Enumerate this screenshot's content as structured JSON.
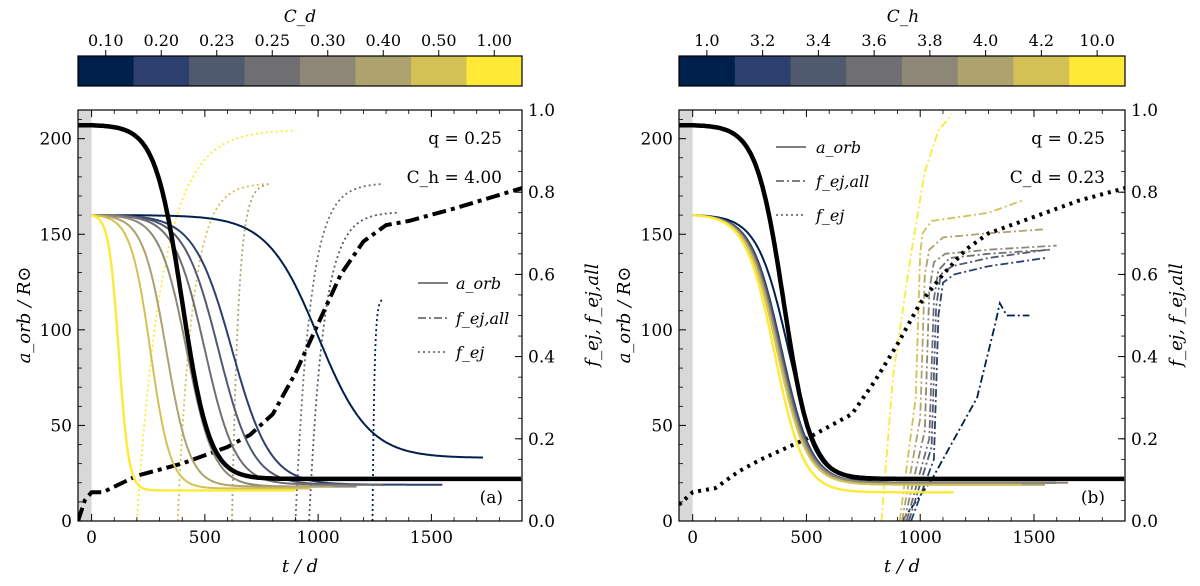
{
  "colors": {
    "palette8": [
      "#00204c",
      "#2c3f6f",
      "#505a6f",
      "#6f6f73",
      "#8c8776",
      "#aea26e",
      "#d4c155",
      "#fde936"
    ],
    "black": "#000000",
    "shade": "#d8d8d8"
  },
  "chart_data": [
    {
      "id": "a",
      "type": "line",
      "panel_label": "(a)",
      "xlabel": "t / d",
      "ylabel_left": "a_orb / R⊙",
      "ylabel_right": "f_ej, f_ej,all",
      "xlim": [
        -60,
        1900
      ],
      "ylim_left": [
        0,
        215
      ],
      "ylim_right": [
        0.0,
        1.0
      ],
      "xticks": [
        0,
        500,
        1000,
        1500
      ],
      "yticks_left": [
        0,
        50,
        100,
        150,
        200
      ],
      "yticks_right": [
        "0.0",
        "0.2",
        "0.4",
        "0.6",
        "0.8",
        "1.0"
      ],
      "colorbar": {
        "label": "C_d",
        "ticks": [
          "0.10",
          "0.20",
          "0.23",
          "0.25",
          "0.30",
          "0.40",
          "0.50",
          "1.00"
        ]
      },
      "annotations": [
        "q = 0.25",
        "C_h = 4.00"
      ],
      "legend": {
        "position": "center-right",
        "entries": [
          "a_orb",
          "f_ej,all",
          "f_ej"
        ]
      },
      "aorb_series": [
        {
          "name": "0.10",
          "t_end": 1730,
          "a0": 160,
          "a_end": 33,
          "a_mid": 105,
          "t_mid": 1000,
          "slope": 280
        },
        {
          "name": "0.20",
          "t_end": 1550,
          "a0": 160,
          "a_end": 19,
          "a_mid": 75,
          "t_mid": 620,
          "slope": 210
        },
        {
          "name": "0.23",
          "t_end": 1300,
          "a0": 160,
          "a_end": 19,
          "a_mid": 80,
          "t_mid": 560,
          "slope": 190
        },
        {
          "name": "0.25",
          "t_end": 1280,
          "a0": 160,
          "a_end": 19,
          "a_mid": 82,
          "t_mid": 500,
          "slope": 170
        },
        {
          "name": "0.30",
          "t_end": 1170,
          "a0": 160,
          "a_end": 18,
          "a_mid": 85,
          "t_mid": 420,
          "slope": 150
        },
        {
          "name": "0.40",
          "t_end": 1070,
          "a0": 160,
          "a_end": 18,
          "a_mid": 88,
          "t_mid": 330,
          "slope": 130
        },
        {
          "name": "0.50",
          "t_end": 970,
          "a0": 160,
          "a_end": 17,
          "a_mid": 90,
          "t_mid": 260,
          "slope": 110
        },
        {
          "name": "1.00",
          "t_end": 900,
          "a0": 160,
          "a_end": 16,
          "a_mid": 95,
          "t_mid": 120,
          "slope": 55
        }
      ],
      "fej_series": [
        {
          "name": "0.10",
          "t_start": 1240,
          "t_end": 1290,
          "f_end": 0.54
        },
        {
          "name": "0.23",
          "t_start": 960,
          "t_end": 1350,
          "f_end": 0.75
        },
        {
          "name": "0.25",
          "t_start": 900,
          "t_end": 1290,
          "f_end": 0.82
        },
        {
          "name": "0.40",
          "t_start": 620,
          "t_end": 790,
          "f_end": 0.82
        },
        {
          "name": "0.50",
          "t_start": 380,
          "t_end": 780,
          "f_end": 0.82
        },
        {
          "name": "1.00",
          "t_start": 200,
          "t_end": 900,
          "f_end": 0.95
        }
      ],
      "reference_aorb": {
        "t_start": -60,
        "t_end": 1900,
        "a0": 207,
        "a_end": 22,
        "t_mid": 400,
        "slope": 150
      },
      "reference_fej_all": {
        "t": [
          -60,
          -30,
          0,
          50,
          200,
          400,
          600,
          700,
          800,
          900,
          1000,
          1100,
          1200,
          1300,
          1400,
          1600,
          1900
        ],
        "f": [
          0.0,
          0.05,
          0.07,
          0.07,
          0.11,
          0.14,
          0.18,
          0.21,
          0.26,
          0.36,
          0.48,
          0.6,
          0.68,
          0.72,
          0.73,
          0.76,
          0.81
        ]
      }
    },
    {
      "id": "b",
      "type": "line",
      "panel_label": "(b)",
      "xlabel": "t / d",
      "ylabel_left": "a_orb / R⊙",
      "ylabel_right": "f_ej, f_ej,all",
      "xlim": [
        -60,
        1900
      ],
      "ylim_left": [
        0,
        215
      ],
      "ylim_right": [
        0.0,
        1.0
      ],
      "xticks": [
        0,
        500,
        1000,
        1500
      ],
      "yticks_left": [
        0,
        50,
        100,
        150,
        200
      ],
      "yticks_right": [
        "0.0",
        "0.2",
        "0.4",
        "0.6",
        "0.8",
        "1.0"
      ],
      "colorbar": {
        "label": "C_h",
        "ticks": [
          "1.0",
          "3.2",
          "3.4",
          "3.6",
          "3.8",
          "4.0",
          "4.2",
          "10.0"
        ]
      },
      "annotations": [
        "q = 0.25",
        "C_d = 0.23"
      ],
      "legend": {
        "position": "top-center",
        "entries": [
          "a_orb",
          "f_ej,all",
          "f_ej"
        ]
      },
      "aorb_series": [
        {
          "name": "1.0",
          "t_end": 1600,
          "a0": 160,
          "a_end": 20,
          "a_mid": 88,
          "t_mid": 420,
          "slope": 170
        },
        {
          "name": "3.2",
          "t_end": 1600,
          "a0": 160,
          "a_end": 20,
          "a_mid": 88,
          "t_mid": 390,
          "slope": 165
        },
        {
          "name": "3.4",
          "t_end": 1600,
          "a0": 160,
          "a_end": 20,
          "a_mid": 88,
          "t_mid": 385,
          "slope": 165
        },
        {
          "name": "3.6",
          "t_end": 1600,
          "a0": 160,
          "a_end": 20,
          "a_mid": 88,
          "t_mid": 380,
          "slope": 165
        },
        {
          "name": "3.8",
          "t_end": 1650,
          "a0": 160,
          "a_end": 20,
          "a_mid": 88,
          "t_mid": 378,
          "slope": 165
        },
        {
          "name": "4.0",
          "t_end": 1550,
          "a0": 160,
          "a_end": 19,
          "a_mid": 88,
          "t_mid": 375,
          "slope": 165
        },
        {
          "name": "4.2",
          "t_end": 1450,
          "a0": 160,
          "a_end": 19,
          "a_mid": 88,
          "t_mid": 370,
          "slope": 165
        },
        {
          "name": "10.0",
          "t_end": 1150,
          "a0": 160,
          "a_end": 15,
          "a_mid": 88,
          "t_mid": 360,
          "slope": 160
        }
      ],
      "fej_all_series": [
        {
          "name": "1.0",
          "t": [
            920,
            1050,
            1150,
            1250,
            1330,
            1350,
            1380,
            1480
          ],
          "f": [
            0.0,
            0.1,
            0.2,
            0.3,
            0.48,
            0.53,
            0.5,
            0.5
          ]
        },
        {
          "name": "3.2",
          "t": [
            960,
            1060,
            1080,
            1100,
            1150,
            1300,
            1550
          ],
          "f": [
            0.0,
            0.15,
            0.5,
            0.58,
            0.6,
            0.62,
            0.64
          ]
        },
        {
          "name": "3.4",
          "t": [
            950,
            1050,
            1070,
            1090,
            1140,
            1300,
            1560
          ],
          "f": [
            0.0,
            0.18,
            0.52,
            0.6,
            0.62,
            0.64,
            0.66
          ]
        },
        {
          "name": "3.6",
          "t": [
            940,
            1040,
            1060,
            1080,
            1130,
            1300,
            1570
          ],
          "f": [
            0.0,
            0.2,
            0.54,
            0.61,
            0.64,
            0.65,
            0.66
          ]
        },
        {
          "name": "3.8",
          "t": [
            930,
            1020,
            1040,
            1060,
            1110,
            1300,
            1600
          ],
          "f": [
            0.0,
            0.22,
            0.56,
            0.63,
            0.65,
            0.66,
            0.67
          ]
        },
        {
          "name": "4.0",
          "t": [
            920,
            1000,
            1020,
            1040,
            1100,
            1300,
            1550
          ],
          "f": [
            0.0,
            0.25,
            0.6,
            0.66,
            0.69,
            0.7,
            0.71
          ]
        },
        {
          "name": "4.2",
          "t": [
            910,
            980,
            1000,
            1010,
            1050,
            1300,
            1450
          ],
          "f": [
            0.0,
            0.3,
            0.65,
            0.7,
            0.73,
            0.75,
            0.78
          ]
        },
        {
          "name": "10.0",
          "t": [
            830,
            880,
            960,
            1020,
            1080,
            1140
          ],
          "f": [
            0.0,
            0.35,
            0.65,
            0.85,
            0.95,
            0.99
          ]
        }
      ],
      "reference_aorb": {
        "t_start": -60,
        "t_end": 1900,
        "a0": 207,
        "a_end": 22,
        "t_mid": 400,
        "slope": 150
      },
      "reference_fej": {
        "t": [
          -60,
          0,
          100,
          200,
          300,
          500,
          700,
          800,
          900,
          1000,
          1100,
          1200,
          1300,
          1500,
          1700,
          1900
        ],
        "f": [
          0.04,
          0.07,
          0.08,
          0.12,
          0.15,
          0.2,
          0.26,
          0.34,
          0.43,
          0.53,
          0.6,
          0.66,
          0.7,
          0.74,
          0.78,
          0.81
        ]
      }
    }
  ]
}
